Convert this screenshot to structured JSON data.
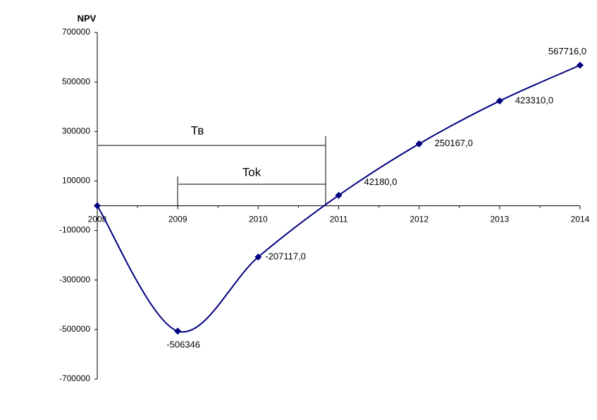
{
  "chart_data": {
    "type": "line",
    "y_axis_label": "NPV",
    "x": [
      2008,
      2009,
      2010,
      2011,
      2012,
      2013,
      2014
    ],
    "xlim": [
      2008,
      2014
    ],
    "xticks": [
      2008,
      2009,
      2010,
      2011,
      2012,
      2013,
      2014
    ],
    "ylim": [
      -700000,
      700000
    ],
    "yticks": [
      -700000,
      -500000,
      -300000,
      -100000,
      100000,
      300000,
      500000,
      700000
    ],
    "series": [
      {
        "color": "#000080",
        "values": [
          0,
          -506346,
          -207117,
          42180,
          250167,
          423310,
          567716
        ],
        "value_labels": [
          null,
          "-506346",
          "-207117,0",
          "42180,0",
          "250167,0",
          "423310,0",
          "567716,0"
        ]
      }
    ],
    "annotations": [
      "Тв",
      "Tok"
    ]
  }
}
